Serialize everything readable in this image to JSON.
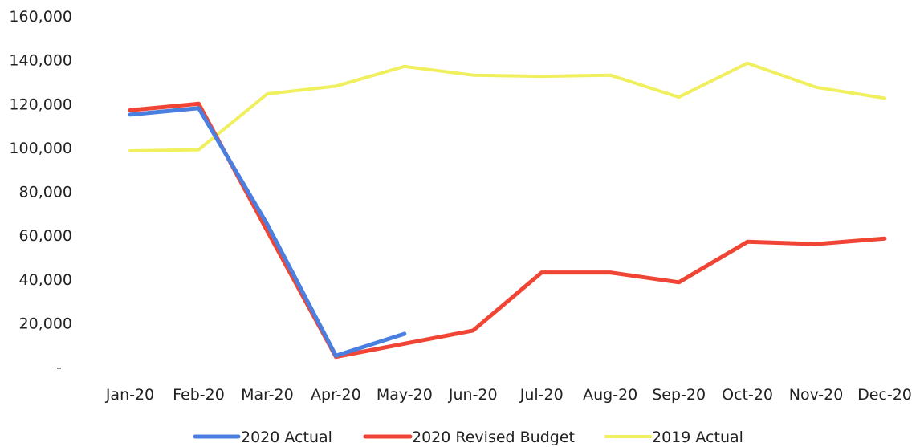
{
  "chart_data": {
    "type": "line",
    "categories": [
      "Jan-20",
      "Feb-20",
      "Mar-20",
      "Apr-20",
      "May-20",
      "Jun-20",
      "Jul-20",
      "Aug-20",
      "Sep-20",
      "Oct-20",
      "Nov-20",
      "Dec-20"
    ],
    "y_tick_labels": [
      "-",
      "20,000",
      "40,000",
      "60,000",
      "80,000",
      "100,000",
      "120,000",
      "140,000",
      "160,000"
    ],
    "ylim": [
      0,
      160000
    ],
    "grid": false,
    "legend_position": "bottom",
    "series": [
      {
        "name": "2020 Actual",
        "color": "#4a7fe0",
        "values": [
          115000,
          118000,
          65000,
          5000,
          15000,
          null,
          null,
          null,
          null,
          null,
          null,
          null
        ]
      },
      {
        "name": "2020 Revised Budget",
        "color": "#f04535",
        "values": [
          117000,
          120000,
          62000,
          4500,
          10500,
          16500,
          43000,
          43000,
          38500,
          57000,
          56000,
          58500
        ]
      },
      {
        "name": "2019 Actual",
        "color": "#f0ef5e",
        "values": [
          98500,
          99000,
          124500,
          128000,
          137000,
          133000,
          132500,
          133000,
          123000,
          138500,
          127500,
          122500
        ]
      }
    ]
  }
}
